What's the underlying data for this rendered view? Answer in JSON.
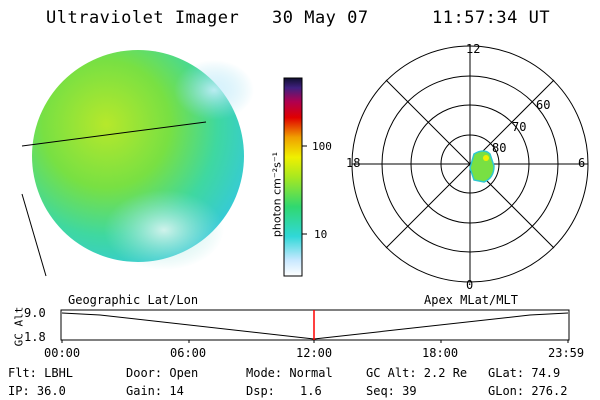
{
  "header": {
    "instrument": "Ultraviolet Imager",
    "date": "30 May 07",
    "time": "11:57:34 UT"
  },
  "colorbar": {
    "unit_label": "photon cm⁻²s⁻¹",
    "ticks": [
      "100",
      "10"
    ]
  },
  "polar_plot": {
    "mlt_labels": {
      "top": "12",
      "right": "6",
      "bottom": "0",
      "left": "18"
    },
    "lat_labels": [
      "60",
      "70",
      "80"
    ]
  },
  "altitude_panel": {
    "left_label": "Geographic Lat/Lon",
    "right_label": "Apex MLat/MLT",
    "axis_title": "GC Alt",
    "y_ticks": [
      "9.0",
      "1.8"
    ],
    "time_ticks": [
      "00:00",
      "06:00",
      "12:00",
      "18:00",
      "23:59"
    ],
    "marker_color": "#ff0000"
  },
  "info": {
    "flt": "Flt: LBHL",
    "ip": "IP: 36.0",
    "door": "Door: Open",
    "gain": "Gain: 14",
    "mode": "Mode: Normal",
    "dsp_label": "Dsp:",
    "dsp_value": "1.6",
    "gcalt": "GC Alt: 2.2 Re",
    "seq": "Seq: 39",
    "glat": "GLat:  74.9",
    "glon": "GLon: 276.2"
  }
}
